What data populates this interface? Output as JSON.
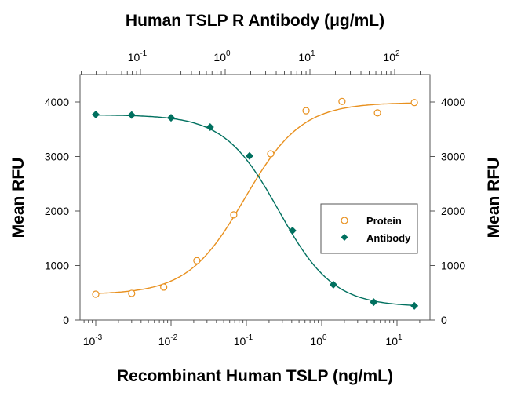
{
  "chart_data": {
    "type": "scatter",
    "title": "Human TSLP R Antibody (μg/mL)",
    "xlabel": "Recombinant Human TSLP (ng/mL)",
    "ylabel": "Mean RFU",
    "ylabel_right": "Mean RFU",
    "x_scale": "log",
    "xlim": [
      0.0006,
      30
    ],
    "x_ticks": [
      {
        "base": "10",
        "exp": "-3",
        "value": 0.001
      },
      {
        "base": "10",
        "exp": "-2",
        "value": 0.01
      },
      {
        "base": "10",
        "exp": "-1",
        "value": 0.1
      },
      {
        "base": "10",
        "exp": "0",
        "value": 1
      },
      {
        "base": "10",
        "exp": "1",
        "value": 10
      }
    ],
    "x_top_scale": "log",
    "x_top_ticks": [
      {
        "base": "10",
        "exp": "-1",
        "value": 0.1
      },
      {
        "base": "10",
        "exp": "0",
        "value": 1
      },
      {
        "base": "10",
        "exp": "1",
        "value": 10
      },
      {
        "base": "10",
        "exp": "2",
        "value": 100
      }
    ],
    "ylim": [
      0,
      4400
    ],
    "y_ticks": [
      "0",
      "1000",
      "2000",
      "3000",
      "4000"
    ],
    "grid": false,
    "legend_placement": "center-right",
    "series": [
      {
        "name": "Protein",
        "marker": "open-circle",
        "color": "#E8901E",
        "x": [
          0.001,
          0.003,
          0.008,
          0.022,
          0.068,
          0.21,
          0.62,
          1.86,
          5.5,
          17
        ],
        "y": [
          475,
          490,
          605,
          1090,
          1930,
          3050,
          3840,
          4010,
          3800,
          3990
        ]
      },
      {
        "name": "Antibody",
        "marker": "filled-diamond",
        "color": "#00705F",
        "x": [
          0.001,
          0.003,
          0.01,
          0.033,
          0.11,
          0.41,
          1.43,
          4.9,
          17
        ],
        "y": [
          3770,
          3760,
          3710,
          3540,
          3010,
          1640,
          650,
          330,
          260
        ]
      }
    ]
  }
}
